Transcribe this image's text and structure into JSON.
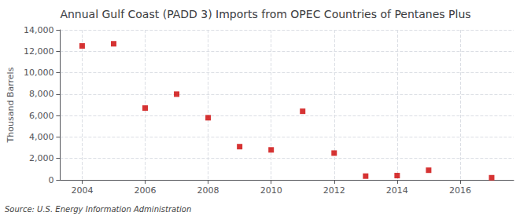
{
  "chart_data": {
    "type": "scatter",
    "title": "Annual Gulf Coast (PADD 3) Imports from OPEC Countries of Pentanes Plus",
    "ylabel": "Thousand Barrels",
    "annotation": "Source: U.S. Energy Information Administration",
    "x": [
      2004,
      2005,
      2006,
      2007,
      2008,
      2009,
      2010,
      2011,
      2012,
      2013,
      2014,
      2015,
      2017
    ],
    "values": [
      12500,
      12700,
      6700,
      8000,
      5800,
      3100,
      2800,
      6400,
      2500,
      350,
      400,
      900,
      200
    ],
    "color": "#cc0000",
    "marker": "square",
    "xlim": [
      2003.3,
      2017.7
    ],
    "ylim": [
      0,
      14000
    ],
    "xticks": [
      2004,
      2006,
      2008,
      2010,
      2012,
      2014,
      2016
    ],
    "yticks": [
      0,
      {
        "value": 2000,
        "label": "2,000"
      },
      {
        "value": 4000,
        "label": "4,000"
      },
      {
        "value": 6000,
        "label": "6,000"
      },
      {
        "value": 8000,
        "label": "8,000"
      },
      {
        "value": 10000,
        "label": "10,000"
      },
      {
        "value": 12000,
        "label": "12,000"
      },
      {
        "value": 14000,
        "label": "14,000"
      }
    ],
    "grid": true
  }
}
